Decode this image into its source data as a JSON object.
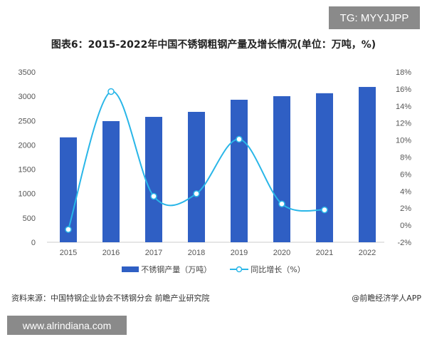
{
  "watermark_top": "TG: MYYJJPP",
  "watermark_bottom": "www.alrindiana.com",
  "source": "资料来源：中国特钢企业协会不锈钢分会 前瞻产业研究院",
  "app_credit": "@前瞻经济学人APP",
  "chart_data": {
    "type": "bar",
    "title": "图表6：2015-2022年中国不锈钢粗钢产量及增长情况(单位：万吨，%)",
    "categories": [
      "2015",
      "2016",
      "2017",
      "2018",
      "2019",
      "2020",
      "2021",
      "2022"
    ],
    "series": [
      {
        "name": "不锈钢产量（万吨）",
        "type": "bar",
        "axis": "left",
        "color": "#2f5fc4",
        "values": [
          2156,
          2490,
          2577,
          2680,
          2929,
          3002,
          3063,
          3192
        ]
      },
      {
        "name": "同比增长（%）",
        "type": "line",
        "axis": "right",
        "color": "#29b6e8",
        "values": [
          -0.5,
          15.7,
          3.4,
          3.7,
          10.1,
          2.5,
          1.8,
          null
        ]
      }
    ],
    "y_left": {
      "min": 0,
      "max": 3500,
      "ticks": [
        "0",
        "500",
        "1000",
        "1500",
        "2000",
        "2500",
        "3000",
        "3500"
      ]
    },
    "y_right": {
      "min": -2,
      "max": 18,
      "ticks": [
        "-2%",
        "0%",
        "2%",
        "4%",
        "6%",
        "8%",
        "10%",
        "12%",
        "14%",
        "16%",
        "18%"
      ]
    },
    "grid": false,
    "legend_position": "bottom"
  }
}
